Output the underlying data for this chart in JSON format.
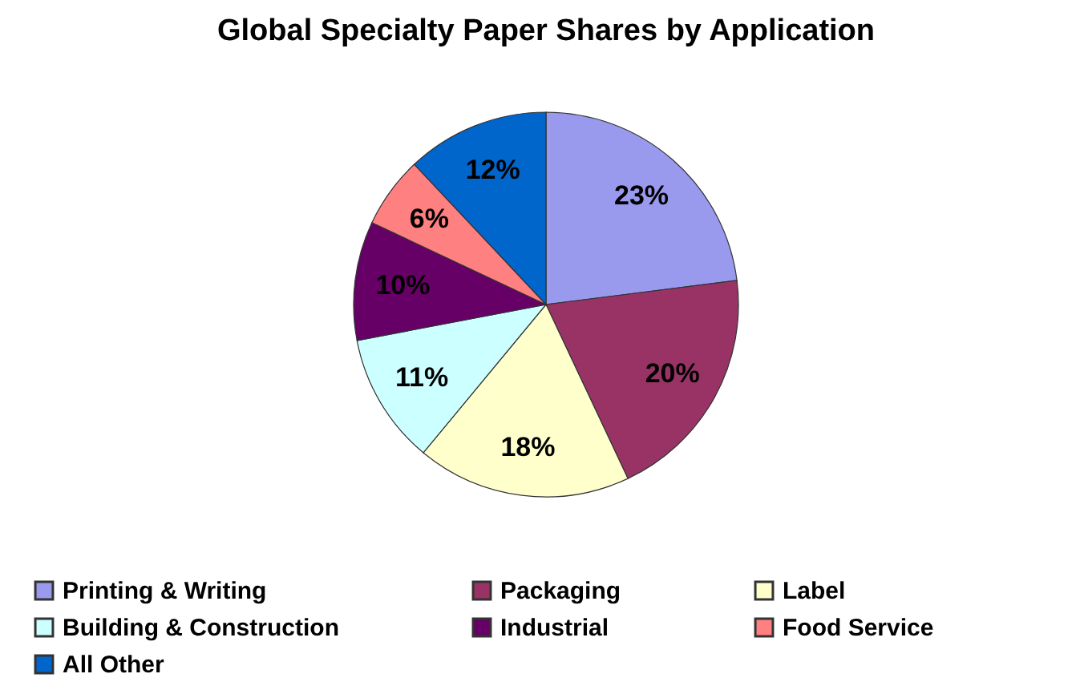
{
  "chart_data": {
    "type": "pie",
    "title": "Global Specialty Paper Shares by Application",
    "categories": [
      "Printing & Writing",
      "Packaging",
      "Label",
      "Building & Construction",
      "Industrial",
      "Food Service",
      "All Other"
    ],
    "values": [
      23,
      20,
      18,
      11,
      10,
      6,
      12
    ],
    "value_labels": [
      "23%",
      "20%",
      "18%",
      "11%",
      "10%",
      "6%",
      "12%"
    ],
    "colors": [
      "#9999ee",
      "#993366",
      "#ffffcc",
      "#ccffff",
      "#660066",
      "#ff8080",
      "#0066cc"
    ],
    "legend": "bottom"
  }
}
